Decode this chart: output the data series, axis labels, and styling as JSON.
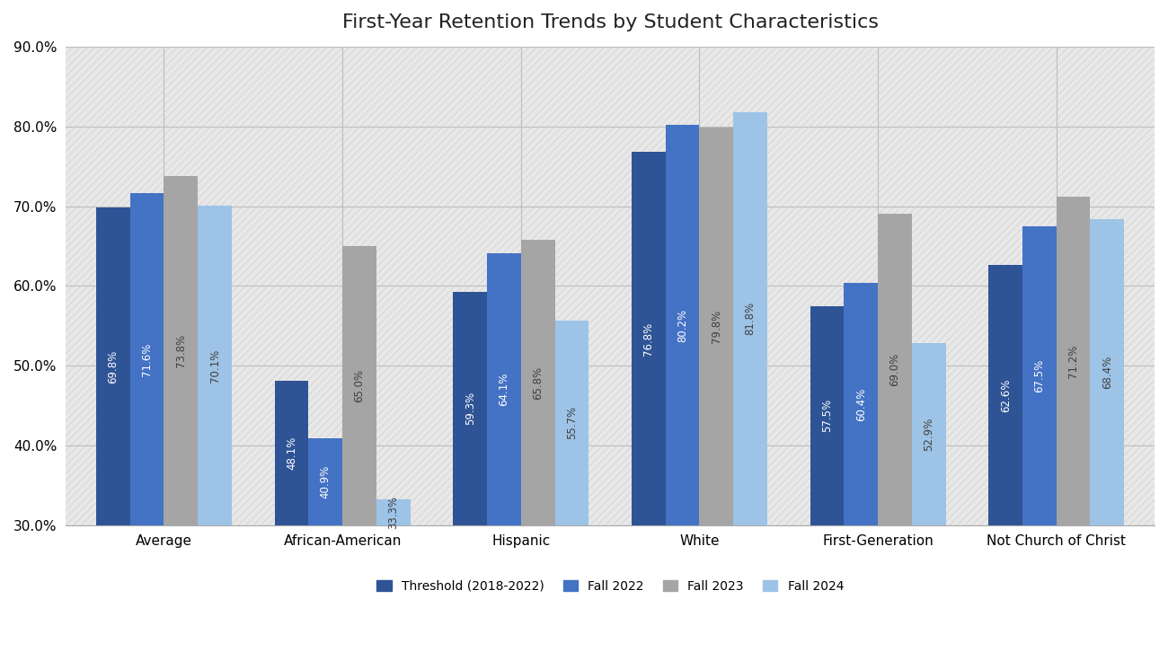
{
  "title": "First-Year Retention Trends by Student Characteristics",
  "categories": [
    "Average",
    "African-American",
    "Hispanic",
    "White",
    "First-Generation",
    "Not Church of Christ"
  ],
  "series": [
    {
      "label": "Threshold (2018-2022)",
      "color": "#2F5496",
      "values": [
        69.8,
        48.1,
        59.3,
        76.8,
        57.5,
        62.6
      ]
    },
    {
      "label": "Fall 2022",
      "color": "#4472C4",
      "values": [
        71.6,
        40.9,
        64.1,
        80.2,
        60.4,
        67.5
      ]
    },
    {
      "label": "Fall 2023",
      "color": "#A5A5A5",
      "values": [
        73.8,
        65.0,
        65.8,
        79.8,
        69.0,
        71.2
      ]
    },
    {
      "label": "Fall 2024",
      "color": "#9DC3E6",
      "values": [
        70.1,
        33.3,
        55.7,
        81.8,
        52.9,
        68.4
      ]
    }
  ],
  "ylim": [
    30.0,
    90.0
  ],
  "yticks": [
    30.0,
    40.0,
    50.0,
    60.0,
    70.0,
    80.0,
    90.0
  ],
  "background_color": "#FFFFFF",
  "plot_bg_color": "#E8E8E8",
  "grid_color": "#BBBBBB",
  "title_fontsize": 16,
  "label_fontsize": 8.5,
  "tick_fontsize": 11,
  "legend_fontsize": 10,
  "bar_width": 0.19,
  "white_text_colors": [
    "#2F5496",
    "#4472C4"
  ],
  "dark_text_colors": [
    "#A5A5A5",
    "#9DC3E6"
  ]
}
